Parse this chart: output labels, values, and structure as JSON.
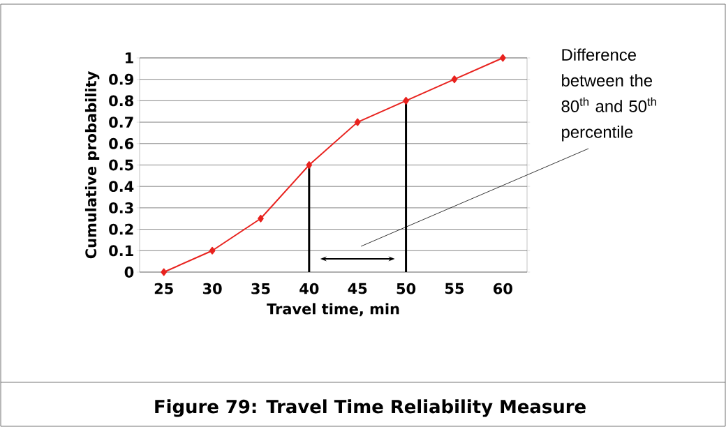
{
  "chart_data": {
    "type": "line",
    "title": "Figure 79: Travel Time Reliability Measure",
    "xlabel": "Travel time, min",
    "ylabel": "Cumulative probability",
    "x": [
      25,
      30,
      35,
      40,
      45,
      50,
      55,
      60
    ],
    "series": [
      {
        "color": "#e8221e",
        "values": [
          0,
          0.1,
          0.25,
          0.5,
          0.7,
          0.8,
          0.9,
          1
        ]
      }
    ],
    "xlim": [
      22.5,
      62.5
    ],
    "xticks": [
      25,
      30,
      35,
      40,
      45,
      50,
      55,
      60
    ],
    "ylim": [
      0,
      1
    ],
    "yticks": [
      0,
      0.1,
      0.2,
      0.3,
      0.4,
      0.5,
      0.6,
      0.7,
      0.8,
      0.9,
      1
    ],
    "grid": "y",
    "marker": "diamond",
    "ref_lines": [
      {
        "axis": "x",
        "value": 40,
        "color": "#000000"
      },
      {
        "axis": "x",
        "value": 50,
        "color": "#000000"
      }
    ],
    "annotations": [
      "Difference between the 80$^{th}$ and 50$^{th}$ percentile"
    ]
  }
}
